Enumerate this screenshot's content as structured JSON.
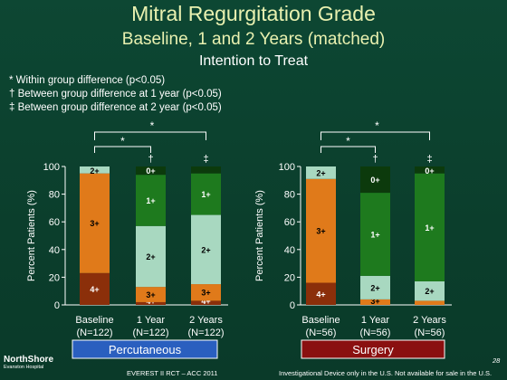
{
  "header": {
    "title": "Mitral Regurgitation Grade",
    "subtitle": "Baseline, 1 and 2 Years (matched)",
    "subtitle2": "Intention to Treat"
  },
  "notes": [
    "* Within group difference (p<0.05)",
    "† Between group difference at 1 year (p<0.05)",
    "‡ Between group difference at 2 year (p<0.05)"
  ],
  "footer": {
    "logo_main": "NorthShore",
    "logo_sub": "Evanston Hospital",
    "center": "EVEREST II RCT – ACC 2011",
    "disclaimer": "Investigational Device only in the U.S. Not available for sale in the U.S.",
    "page": "28"
  },
  "colors": {
    "grade_0": "#0c3a0c",
    "grade_1": "#1e7a1e",
    "grade_2": "#a8d8c0",
    "grade_3": "#e07a1a",
    "grade_4": "#8b2f0a",
    "perc_label_bg": "#2a5fbf",
    "surg_label_bg": "#8a1010"
  },
  "chart_data": [
    {
      "type": "bar",
      "stacked": true,
      "group_label": "Percutaneous",
      "ylabel": "Percent Patients (%)",
      "ylim": [
        0,
        100
      ],
      "yticks": [
        0,
        20,
        40,
        60,
        80,
        100
      ],
      "categories": [
        "Baseline",
        "1 Year",
        "2 Years"
      ],
      "n_labels": [
        "(N=122)",
        "(N=122)",
        "(N=122)"
      ],
      "series": [
        {
          "name": "4+",
          "values": [
            23,
            2,
            3
          ]
        },
        {
          "name": "3+",
          "values": [
            72,
            11,
            12
          ]
        },
        {
          "name": "2+",
          "values": [
            5,
            44,
            50
          ]
        },
        {
          "name": "1+",
          "values": [
            0,
            37,
            30
          ]
        },
        {
          "name": "0+",
          "values": [
            0,
            6,
            5
          ]
        }
      ],
      "labels": [
        [
          "4+",
          "3+",
          "2+",
          "",
          ""
        ],
        [
          "4+",
          "3+",
          "2+",
          "1+",
          "0+"
        ],
        [
          "4+",
          "3+",
          "2+",
          "1+",
          ""
        ]
      ],
      "significance": {
        "top_markers": [
          "",
          "†",
          "‡"
        ],
        "brackets": [
          "*",
          "*"
        ]
      }
    },
    {
      "type": "bar",
      "stacked": true,
      "group_label": "Surgery",
      "ylabel": "Percent Patients (%)",
      "ylim": [
        0,
        100
      ],
      "yticks": [
        0,
        20,
        40,
        60,
        80,
        100
      ],
      "categories": [
        "Baseline",
        "1 Year",
        "2 Years"
      ],
      "n_labels": [
        "(N=56)",
        "(N=56)",
        "(N=56)"
      ],
      "series": [
        {
          "name": "4+",
          "values": [
            16,
            0,
            0
          ]
        },
        {
          "name": "3+",
          "values": [
            75,
            4,
            3
          ]
        },
        {
          "name": "2+",
          "values": [
            9,
            17,
            14
          ]
        },
        {
          "name": "1+",
          "values": [
            0,
            60,
            78
          ]
        },
        {
          "name": "0+",
          "values": [
            0,
            19,
            5
          ]
        }
      ],
      "labels": [
        [
          "4+",
          "3+",
          "2+",
          "",
          ""
        ],
        [
          "",
          "3+",
          "2+",
          "1+",
          "0+"
        ],
        [
          "",
          "",
          "2+",
          "1+",
          "0+"
        ]
      ],
      "significance": {
        "top_markers": [
          "",
          "†",
          "‡"
        ],
        "brackets": [
          "*",
          "*"
        ]
      }
    }
  ]
}
